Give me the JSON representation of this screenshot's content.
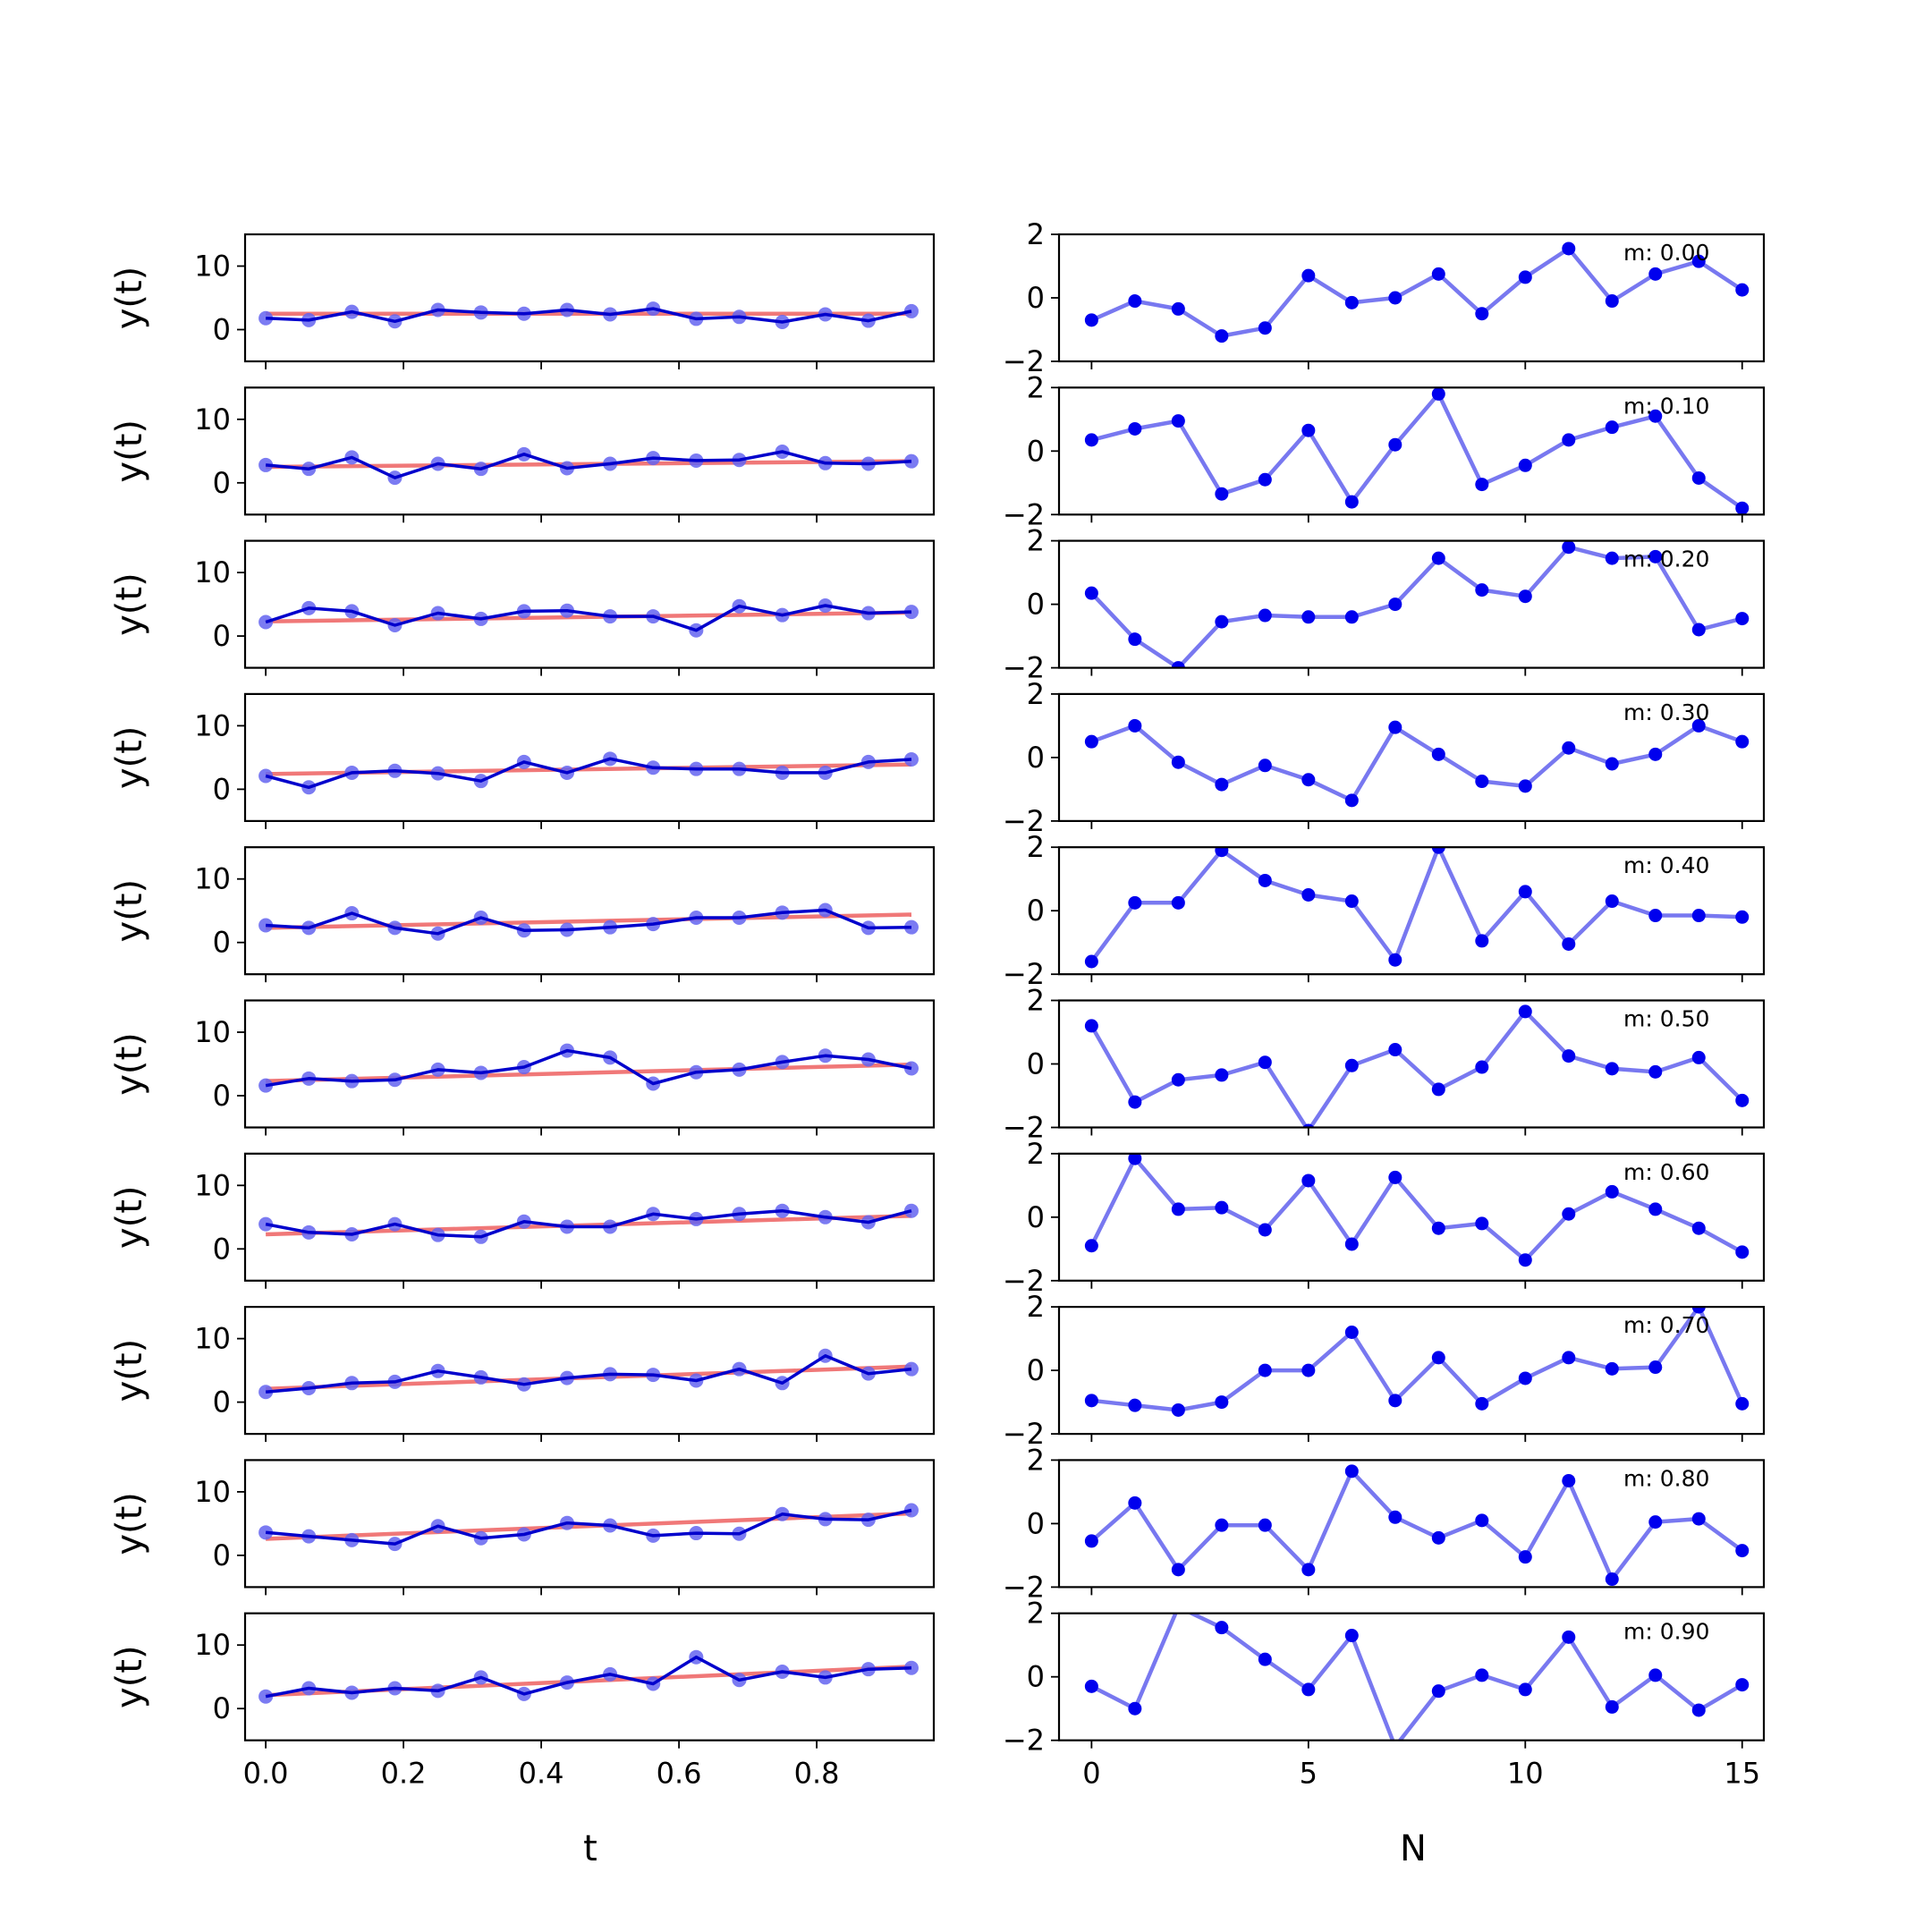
{
  "colors": {
    "observed": "#0000cc",
    "marker": "#6464f0",
    "trend": "#f07878",
    "residual_line": "#7878f0",
    "residual_marker": "#0000ee"
  },
  "chart_data": [
    {
      "type": "line",
      "panel": "left",
      "xlabel": "t",
      "ylabel": "y(t)",
      "xlim": [
        -0.03,
        0.97
      ],
      "ylim": [
        -5,
        15
      ],
      "xticks": [
        0.0,
        0.2,
        0.4,
        0.6,
        0.8
      ],
      "xtick_labels": [
        "0.0",
        "0.2",
        "0.4",
        "0.6",
        "0.8"
      ],
      "yticks": [
        0,
        10
      ],
      "ytick_labels": [
        "0",
        "10"
      ],
      "x": [
        0.0,
        0.0625,
        0.125,
        0.1875,
        0.25,
        0.3125,
        0.375,
        0.4375,
        0.5,
        0.5625,
        0.625,
        0.6875,
        0.75,
        0.8125,
        0.875,
        0.9375
      ],
      "series": [
        {
          "m": 0.0,
          "trend": [
            2.5,
            2.5
          ],
          "values": [
            1.8,
            1.5,
            2.8,
            1.3,
            3.1,
            2.7,
            2.5,
            3.1,
            2.4,
            3.3,
            1.7,
            2.0,
            1.2,
            2.4,
            1.4,
            2.9
          ]
        },
        {
          "m": 0.1,
          "trend": [
            2.5,
            3.4
          ],
          "values": [
            2.8,
            2.2,
            4.0,
            0.8,
            3.0,
            2.2,
            4.5,
            2.3,
            3.0,
            3.9,
            3.5,
            3.6,
            4.9,
            3.1,
            3.0,
            3.4
          ]
        },
        {
          "m": 0.2,
          "trend": [
            2.3,
            3.7
          ],
          "values": [
            2.2,
            4.4,
            3.9,
            1.7,
            3.6,
            2.7,
            3.9,
            4.0,
            3.1,
            3.1,
            0.9,
            4.7,
            3.3,
            4.8,
            3.6,
            3.8
          ]
        },
        {
          "m": 0.3,
          "trend": [
            2.4,
            3.9
          ],
          "values": [
            2.1,
            0.3,
            2.6,
            2.9,
            2.5,
            1.3,
            4.3,
            2.6,
            4.8,
            3.4,
            3.2,
            3.2,
            2.6,
            2.6,
            4.3,
            4.7
          ]
        },
        {
          "m": 0.4,
          "trend": [
            2.3,
            4.4
          ],
          "values": [
            2.7,
            2.3,
            4.6,
            2.3,
            1.4,
            3.9,
            1.9,
            2.0,
            2.4,
            2.9,
            3.9,
            3.9,
            4.7,
            5.1,
            2.3,
            2.4
          ]
        },
        {
          "m": 0.5,
          "trend": [
            2.3,
            4.9
          ],
          "values": [
            1.6,
            2.7,
            2.3,
            2.5,
            4.1,
            3.6,
            4.5,
            7.1,
            6.0,
            1.9,
            3.7,
            4.1,
            5.3,
            6.3,
            5.7,
            4.3
          ]
        },
        {
          "m": 0.6,
          "trend": [
            2.3,
            5.2
          ],
          "values": [
            3.9,
            2.6,
            2.3,
            3.9,
            2.2,
            1.9,
            4.3,
            3.5,
            3.5,
            5.5,
            4.7,
            5.5,
            6.0,
            5.0,
            4.2,
            6.0
          ]
        },
        {
          "m": 0.7,
          "trend": [
            2.1,
            5.6
          ],
          "values": [
            1.6,
            2.2,
            3.0,
            3.2,
            4.9,
            3.9,
            2.8,
            3.8,
            4.4,
            4.3,
            3.4,
            5.2,
            3.0,
            7.3,
            4.5,
            5.2
          ]
        },
        {
          "m": 0.8,
          "trend": [
            2.6,
            6.6
          ],
          "values": [
            3.6,
            3.0,
            2.4,
            1.8,
            4.6,
            2.7,
            3.3,
            5.1,
            4.7,
            3.1,
            3.5,
            3.4,
            6.5,
            5.7,
            5.6,
            7.1
          ]
        },
        {
          "m": 0.9,
          "trend": [
            2.1,
            6.6
          ],
          "values": [
            1.9,
            3.2,
            2.5,
            3.2,
            2.8,
            4.9,
            2.3,
            4.1,
            5.4,
            3.9,
            8.1,
            4.5,
            5.8,
            4.9,
            6.2,
            6.4
          ]
        }
      ]
    },
    {
      "type": "line",
      "panel": "right",
      "xlabel": "N",
      "xlim": [
        -0.75,
        15.5
      ],
      "ylim": [
        -2,
        2
      ],
      "xticks": [
        0,
        5,
        10,
        15
      ],
      "xtick_labels": [
        "0",
        "5",
        "10",
        "15"
      ],
      "yticks": [
        -2,
        0,
        2
      ],
      "ytick_labels": [
        "−2",
        "0",
        "2"
      ],
      "x": [
        0,
        1,
        2,
        3,
        4,
        5,
        6,
        7,
        8,
        9,
        10,
        11,
        12,
        13,
        14,
        15
      ],
      "series": [
        {
          "annotation": "m: 0.00",
          "values": [
            -0.7,
            -0.1,
            -0.35,
            -1.2,
            -0.95,
            0.7,
            -0.15,
            0.0,
            0.75,
            -0.5,
            0.65,
            1.55,
            -0.1,
            0.75,
            1.15,
            0.25
          ]
        },
        {
          "annotation": "m: 0.10",
          "values": [
            0.35,
            0.7,
            0.95,
            -1.35,
            -0.9,
            0.65,
            -1.6,
            0.2,
            1.8,
            -1.05,
            -0.45,
            0.35,
            0.75,
            1.1,
            -0.85,
            -1.8
          ]
        },
        {
          "annotation": "m: 0.20",
          "values": [
            0.35,
            -1.1,
            -2.0,
            -0.55,
            -0.35,
            -0.4,
            -0.4,
            0.0,
            1.45,
            0.45,
            0.25,
            1.8,
            1.45,
            1.5,
            -0.8,
            -0.45
          ]
        },
        {
          "annotation": "m: 0.30",
          "values": [
            0.5,
            1.0,
            -0.15,
            -0.85,
            -0.25,
            -0.7,
            -1.35,
            0.95,
            0.1,
            -0.75,
            -0.9,
            0.3,
            -0.2,
            0.1,
            1.0,
            0.5
          ]
        },
        {
          "annotation": "m: 0.40",
          "values": [
            -1.6,
            0.25,
            0.25,
            1.9,
            0.95,
            0.5,
            0.3,
            -1.55,
            2.0,
            -0.95,
            0.6,
            -1.05,
            0.3,
            -0.15,
            -0.15,
            -0.2
          ]
        },
        {
          "annotation": "m: 0.50",
          "values": [
            1.2,
            -1.2,
            -0.5,
            -0.35,
            0.05,
            -2.1,
            -0.05,
            0.45,
            -0.8,
            -0.1,
            1.65,
            0.25,
            -0.15,
            -0.25,
            0.2,
            -1.15
          ]
        },
        {
          "annotation": "m: 0.60",
          "values": [
            -0.9,
            1.85,
            0.25,
            0.3,
            -0.4,
            1.15,
            -0.85,
            1.25,
            -0.35,
            -0.2,
            -1.35,
            0.1,
            0.8,
            0.25,
            -0.35,
            -1.1
          ]
        },
        {
          "annotation": "m: 0.70",
          "values": [
            -0.95,
            -1.1,
            -1.25,
            -1.0,
            0.0,
            0.0,
            1.2,
            -0.95,
            0.4,
            -1.05,
            -0.25,
            0.4,
            0.05,
            0.1,
            2.0,
            -1.05
          ]
        },
        {
          "annotation": "m: 0.80",
          "values": [
            -0.55,
            0.65,
            -1.45,
            -0.05,
            -0.05,
            -1.45,
            1.65,
            0.2,
            -0.45,
            0.1,
            -1.05,
            1.35,
            -1.75,
            0.05,
            0.15,
            -0.85
          ]
        },
        {
          "annotation": "m: 0.90",
          "values": [
            -0.3,
            -1.0,
            2.2,
            1.55,
            0.55,
            -0.4,
            1.3,
            -2.2,
            -0.45,
            0.05,
            -0.4,
            1.25,
            -0.95,
            0.05,
            -1.05,
            -0.25
          ]
        }
      ]
    }
  ]
}
